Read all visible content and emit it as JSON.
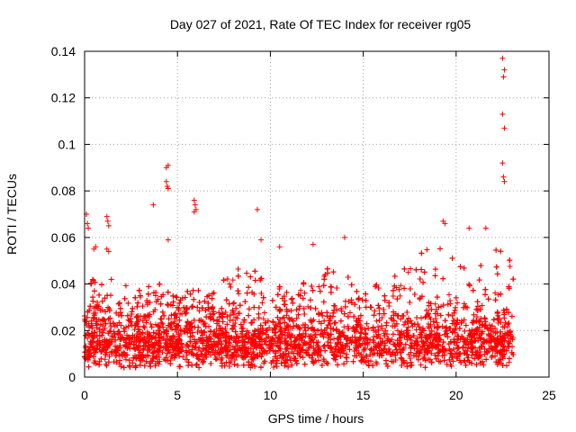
{
  "chart_data": {
    "type": "scatter",
    "title": "Day 027 of 2021, Rate Of TEC Index for receiver rg05",
    "xlabel": "GPS time / hours",
    "ylabel": "ROTI / TECUs",
    "xlim": [
      0,
      25
    ],
    "ylim": [
      0,
      0.14
    ],
    "xticks": [
      0,
      5,
      10,
      15,
      20,
      25
    ],
    "xtick_labels": [
      "0",
      "5",
      "10",
      "15",
      "20",
      "25"
    ],
    "yticks": [
      0,
      0.02,
      0.04,
      0.06,
      0.08,
      0.1,
      0.12,
      0.14
    ],
    "ytick_labels": [
      "0",
      "0.02",
      "0.04",
      "0.06",
      "0.08",
      "0.1",
      "0.12",
      "0.14"
    ],
    "grid": true,
    "marker": "+",
    "color": "#ff0000",
    "series": [
      {
        "name": "ROTI",
        "notable_points": [
          {
            "x": 0.1,
            "y": 0.07
          },
          {
            "x": 0.15,
            "y": 0.066
          },
          {
            "x": 0.2,
            "y": 0.064
          },
          {
            "x": 0.5,
            "y": 0.055
          },
          {
            "x": 0.6,
            "y": 0.056
          },
          {
            "x": 1.2,
            "y": 0.069
          },
          {
            "x": 1.25,
            "y": 0.067
          },
          {
            "x": 1.3,
            "y": 0.065
          },
          {
            "x": 1.2,
            "y": 0.055
          },
          {
            "x": 1.3,
            "y": 0.054
          },
          {
            "x": 3.7,
            "y": 0.074
          },
          {
            "x": 4.4,
            "y": 0.09
          },
          {
            "x": 4.5,
            "y": 0.091
          },
          {
            "x": 4.4,
            "y": 0.084
          },
          {
            "x": 4.45,
            "y": 0.082
          },
          {
            "x": 4.5,
            "y": 0.081
          },
          {
            "x": 4.5,
            "y": 0.059
          },
          {
            "x": 5.9,
            "y": 0.076
          },
          {
            "x": 5.95,
            "y": 0.074
          },
          {
            "x": 6.0,
            "y": 0.072
          },
          {
            "x": 5.9,
            "y": 0.071
          },
          {
            "x": 9.3,
            "y": 0.072
          },
          {
            "x": 9.5,
            "y": 0.059
          },
          {
            "x": 10.5,
            "y": 0.056
          },
          {
            "x": 12.3,
            "y": 0.057
          },
          {
            "x": 14.0,
            "y": 0.06
          },
          {
            "x": 19.3,
            "y": 0.067
          },
          {
            "x": 19.4,
            "y": 0.066
          },
          {
            "x": 20.7,
            "y": 0.064
          },
          {
            "x": 21.6,
            "y": 0.064
          },
          {
            "x": 22.5,
            "y": 0.137
          },
          {
            "x": 22.6,
            "y": 0.132
          },
          {
            "x": 22.55,
            "y": 0.129
          },
          {
            "x": 22.5,
            "y": 0.113
          },
          {
            "x": 22.6,
            "y": 0.107
          },
          {
            "x": 22.5,
            "y": 0.092
          },
          {
            "x": 22.55,
            "y": 0.086
          },
          {
            "x": 22.6,
            "y": 0.084
          }
        ],
        "bulk_profile": {
          "x_start": 0,
          "x_end": 23.1,
          "typical_range": [
            0.004,
            0.03
          ],
          "envelope": [
            {
              "x": 0,
              "y": 0.04
            },
            {
              "x": 1,
              "y": 0.045
            },
            {
              "x": 2,
              "y": 0.04
            },
            {
              "x": 3,
              "y": 0.038
            },
            {
              "x": 4,
              "y": 0.045
            },
            {
              "x": 5,
              "y": 0.035
            },
            {
              "x": 6,
              "y": 0.038
            },
            {
              "x": 7,
              "y": 0.04
            },
            {
              "x": 8,
              "y": 0.045
            },
            {
              "x": 9,
              "y": 0.053
            },
            {
              "x": 10,
              "y": 0.05
            },
            {
              "x": 11,
              "y": 0.035
            },
            {
              "x": 12,
              "y": 0.048
            },
            {
              "x": 13,
              "y": 0.05
            },
            {
              "x": 14,
              "y": 0.045
            },
            {
              "x": 15,
              "y": 0.04
            },
            {
              "x": 16,
              "y": 0.042
            },
            {
              "x": 17,
              "y": 0.045
            },
            {
              "x": 18,
              "y": 0.055
            },
            {
              "x": 19,
              "y": 0.058
            },
            {
              "x": 20,
              "y": 0.05
            },
            {
              "x": 21,
              "y": 0.045
            },
            {
              "x": 22,
              "y": 0.058
            },
            {
              "x": 23,
              "y": 0.05
            }
          ]
        }
      }
    ]
  }
}
